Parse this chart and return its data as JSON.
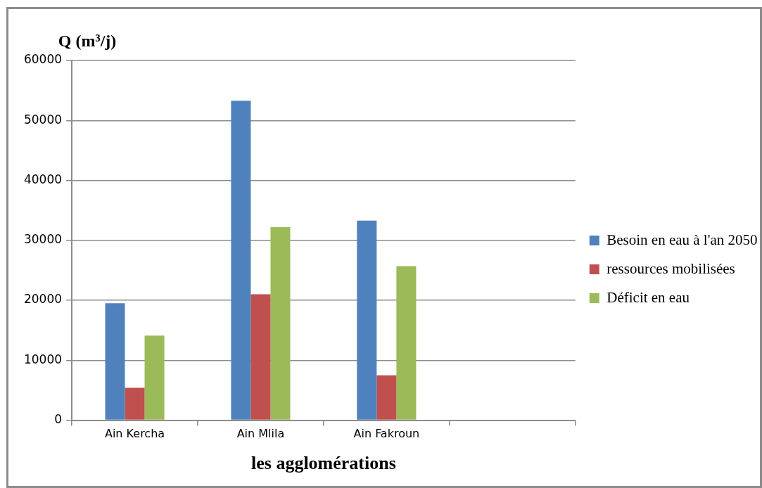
{
  "chart_data": {
    "type": "bar",
    "xlabel": "les agglomérations",
    "ylabel": "Q (m³/j)",
    "categories": [
      "Ain Kercha",
      "Ain Mlila",
      "Ain Fakroun",
      null
    ],
    "series": [
      {
        "name": "Besoin en eau à l'an 2050",
        "color": "#4f81bd",
        "values": [
          19500,
          53300,
          33300,
          null
        ]
      },
      {
        "name": "ressources mobilisées",
        "color": "#c0504d",
        "values": [
          5400,
          21000,
          7500,
          null
        ]
      },
      {
        "name": "Déficit en eau",
        "color": "#9bbb59",
        "values": [
          14100,
          32200,
          25700,
          null
        ]
      }
    ],
    "ylim": [
      0,
      60000
    ],
    "yticks": [
      0,
      10000,
      20000,
      30000,
      40000,
      50000,
      60000
    ],
    "grid": "y",
    "legend": "right"
  }
}
